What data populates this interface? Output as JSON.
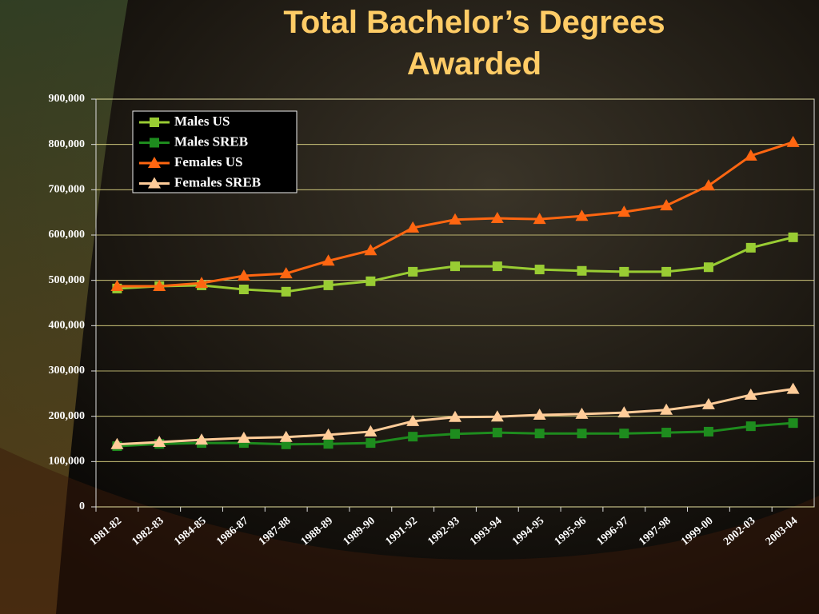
{
  "chart_data": {
    "type": "line",
    "title": "Total Bachelor’s Degrees Awarded",
    "categories": [
      "1981-82",
      "1982-83",
      "1984-85",
      "1986-87",
      "1987-88",
      "1988-89",
      "1989-90",
      "1991-92",
      "1992-93",
      "1993-94",
      "1994-95",
      "1995-96",
      "1996-97",
      "1997-98",
      "1999-00",
      "2002-03",
      "2003-04"
    ],
    "series": [
      {
        "name": "Males US",
        "color": "#99CC33",
        "marker": "square",
        "values": [
          482000,
          487000,
          489000,
          480000,
          475000,
          489000,
          498000,
          519000,
          531000,
          531000,
          524000,
          521000,
          519000,
          519000,
          529000,
          572000,
          595000
        ]
      },
      {
        "name": "Males SREB",
        "color": "#1E8C1E",
        "marker": "square",
        "values": [
          134000,
          139000,
          141000,
          141000,
          138000,
          139000,
          141000,
          155000,
          161000,
          164000,
          162000,
          162000,
          162000,
          164000,
          166000,
          178000,
          185000
        ]
      },
      {
        "name": "Females US",
        "color": "#FF6611",
        "marker": "triangle",
        "values": [
          487000,
          487000,
          494000,
          510000,
          515000,
          543000,
          566000,
          616000,
          634000,
          637000,
          635000,
          642000,
          651000,
          665000,
          709000,
          775000,
          805000
        ]
      },
      {
        "name": "Females SREB",
        "color": "#FFCC99",
        "marker": "triangle",
        "values": [
          138000,
          143000,
          148000,
          152000,
          154000,
          159000,
          166000,
          189000,
          198000,
          199000,
          203000,
          205000,
          208000,
          214000,
          226000,
          247000,
          260000
        ]
      }
    ],
    "ylim": [
      0,
      900000
    ],
    "yticks": [
      0,
      {
        "value": 100000,
        "label": "100,000"
      },
      {
        "value": 200000,
        "label": "200,000"
      },
      {
        "value": 300000,
        "label": "300,000"
      },
      {
        "value": 400000,
        "label": "400,000"
      },
      {
        "value": 500000,
        "label": "500,000"
      },
      {
        "value": 600000,
        "label": "600,000"
      },
      {
        "value": 700000,
        "label": "700,000"
      },
      {
        "value": 800000,
        "label": "800,000"
      },
      {
        "value": 900000,
        "label": "900,000"
      }
    ],
    "grid": true,
    "legend_position": "top-left"
  }
}
